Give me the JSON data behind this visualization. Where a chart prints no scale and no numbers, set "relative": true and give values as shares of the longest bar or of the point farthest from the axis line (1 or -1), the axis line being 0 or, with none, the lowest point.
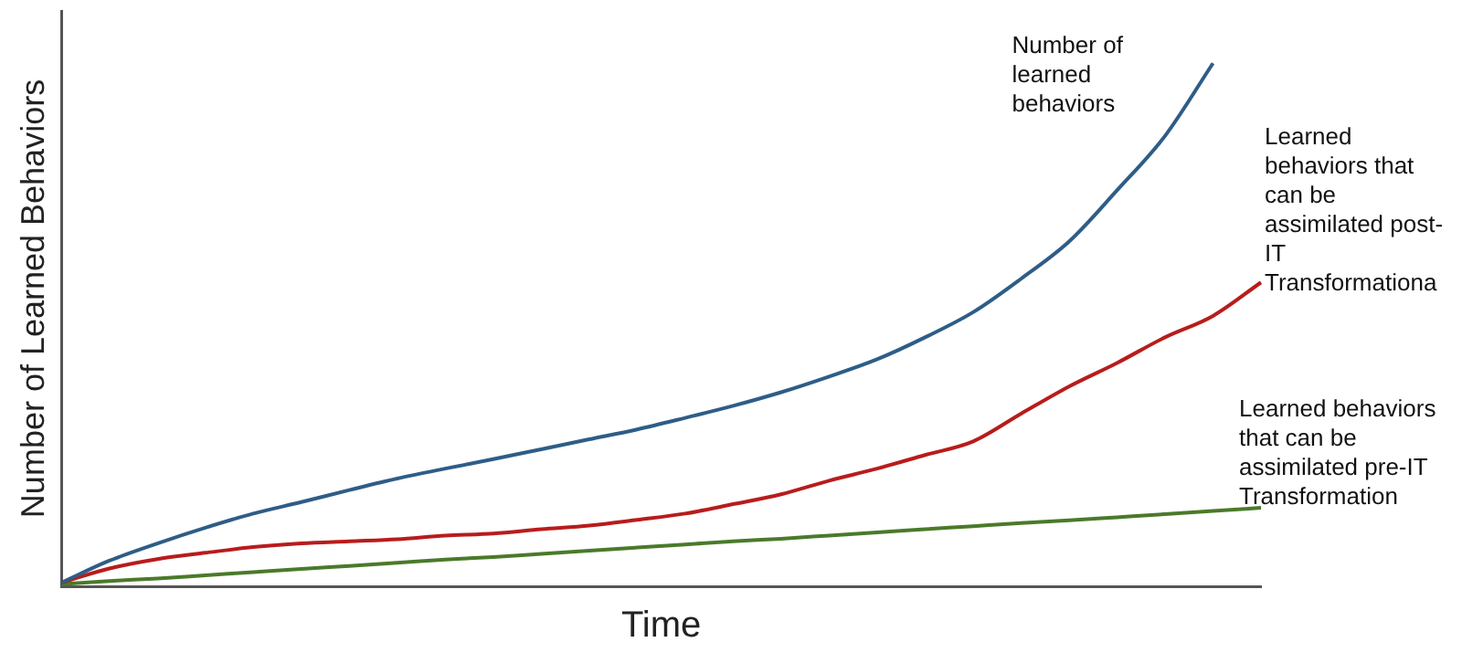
{
  "chart_data": {
    "type": "line",
    "relative": true,
    "xlabel": "Time",
    "ylabel": "Number of Learned Behaviors",
    "grid": false,
    "legend": false,
    "marker": "none",
    "line_style": "solid",
    "categories": [
      null,
      null,
      null,
      null,
      null,
      null,
      null,
      null,
      null,
      null,
      null,
      null,
      null,
      null,
      null,
      null,
      null,
      null,
      null,
      null,
      null,
      null,
      null,
      null,
      null,
      null
    ],
    "series": [
      {
        "name": "Number of learned behaviors",
        "color": "#2e5d87",
        "values": [
          0.007,
          0.049,
          0.082,
          0.112,
          0.139,
          0.161,
          0.184,
          0.206,
          0.225,
          0.243,
          0.262,
          0.281,
          0.3,
          0.322,
          0.345,
          0.371,
          0.401,
          0.434,
          0.476,
          0.524,
          0.588,
          0.659,
          0.757,
          0.861,
          1.0,
          null
        ]
      },
      {
        "name": "Learned behaviors that can be assimilated post-IT Transformationa",
        "color": "#b81c1c",
        "values": [
          0.007,
          0.034,
          0.052,
          0.064,
          0.075,
          0.082,
          0.086,
          0.09,
          0.097,
          0.101,
          0.109,
          0.116,
          0.127,
          0.139,
          0.157,
          0.176,
          0.202,
          0.225,
          0.251,
          0.277,
          0.33,
          0.382,
          0.427,
          0.476,
          0.517,
          0.581
        ]
      },
      {
        "name": "Learned behaviors that can be assimilated pre-IT Transformation",
        "color": "#4a7a2a",
        "values": [
          0.004,
          0.01,
          0.015,
          0.021,
          0.027,
          0.033,
          0.039,
          0.045,
          0.051,
          0.056,
          0.062,
          0.068,
          0.074,
          0.08,
          0.086,
          0.091,
          0.097,
          0.103,
          0.109,
          0.115,
          0.121,
          0.126,
          0.132,
          0.138,
          0.144,
          0.15
        ]
      }
    ]
  }
}
